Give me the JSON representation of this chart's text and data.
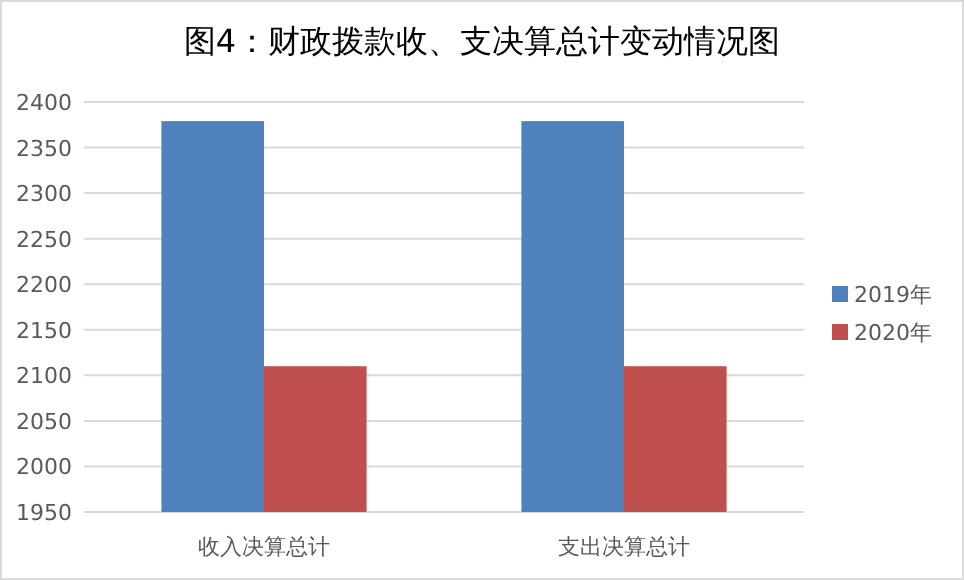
{
  "chart_data": {
    "type": "bar",
    "title": "图4：财政拨款收、支决算总计变动情况图",
    "categories": [
      "收入决算总计",
      "支出决算总计"
    ],
    "series": [
      {
        "name": "2019年",
        "color": "#4f81bd",
        "values": [
          2379,
          2379
        ]
      },
      {
        "name": "2020年",
        "color": "#c0504d",
        "values": [
          2110,
          2110
        ]
      }
    ],
    "ylim": [
      1950,
      2400
    ],
    "yticks": [
      1950,
      2000,
      2050,
      2100,
      2150,
      2200,
      2250,
      2300,
      2350,
      2400
    ],
    "grid": "y",
    "legend": "right"
  }
}
